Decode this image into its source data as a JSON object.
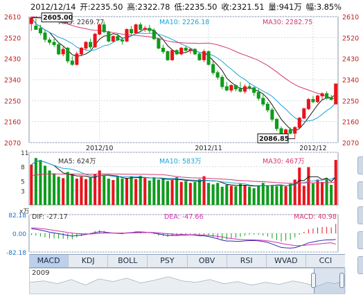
{
  "header": {
    "date": "2012/12/14",
    "open": "开:2235.50",
    "high": "高:2322.78",
    "low": "低:2235.50",
    "close": "收:2321.51",
    "volume": "量:941万",
    "change": "幅:3.85%"
  },
  "tabs": [
    "MACD",
    "KDJ",
    "BOLL",
    "PSY",
    "OBV",
    "RSI",
    "WVAD",
    "CCI"
  ],
  "active_tab": "MACD",
  "navigator_year": "2009",
  "colors": {
    "up": "#e8141c",
    "down": "#0f9c1c",
    "ma5": "#111111",
    "ma10": "#1aa3d8",
    "ma30": "#d6366e",
    "dif": "#2a2aaa",
    "dea": "#d42ab0",
    "text_blue": "#1b6fc2"
  },
  "chart_data": [
    {
      "type": "candlestick",
      "ylim": [
        2070,
        2610
      ],
      "yticks": [
        2610,
        2520,
        2430,
        2340,
        2250,
        2160,
        2070
      ],
      "xticks": [
        {
          "label": "2012/10",
          "index": 15
        },
        {
          "label": "2012/11",
          "index": 39
        },
        {
          "label": "2012/12",
          "index": 62
        }
      ],
      "annotations": {
        "high": "2605.00",
        "low": "2086.85"
      },
      "legend": {
        "ma5": "MA5: 2269.77",
        "ma10": "MA10: 2226.18",
        "ma30": "MA30: 2282.75"
      },
      "candles": [
        [
          2580,
          2605,
          2550,
          2605
        ],
        [
          2570,
          2600,
          2560,
          2555
        ],
        [
          2560,
          2575,
          2530,
          2540
        ],
        [
          2540,
          2555,
          2500,
          2512
        ],
        [
          2510,
          2520,
          2490,
          2500
        ],
        [
          2500,
          2515,
          2480,
          2490
        ],
        [
          2490,
          2500,
          2445,
          2450
        ],
        [
          2450,
          2480,
          2440,
          2470
        ],
        [
          2475,
          2480,
          2410,
          2420
        ],
        [
          2420,
          2440,
          2400,
          2405
        ],
        [
          2405,
          2460,
          2400,
          2450
        ],
        [
          2450,
          2480,
          2440,
          2475
        ],
        [
          2475,
          2505,
          2465,
          2500
        ],
        [
          2500,
          2515,
          2470,
          2480
        ],
        [
          2480,
          2540,
          2475,
          2535
        ],
        [
          2535,
          2580,
          2530,
          2575
        ],
        [
          2575,
          2590,
          2540,
          2545
        ],
        [
          2545,
          2550,
          2500,
          2505
        ],
        [
          2505,
          2530,
          2500,
          2525
        ],
        [
          2525,
          2540,
          2505,
          2510
        ],
        [
          2510,
          2520,
          2490,
          2505
        ],
        [
          2505,
          2560,
          2500,
          2555
        ],
        [
          2555,
          2570,
          2530,
          2540
        ],
        [
          2540,
          2580,
          2535,
          2575
        ],
        [
          2575,
          2585,
          2550,
          2555
        ],
        [
          2555,
          2570,
          2545,
          2560
        ],
        [
          2560,
          2575,
          2540,
          2550
        ],
        [
          2550,
          2560,
          2510,
          2515
        ],
        [
          2515,
          2520,
          2470,
          2475
        ],
        [
          2475,
          2490,
          2450,
          2460
        ],
        [
          2460,
          2465,
          2420,
          2425
        ],
        [
          2425,
          2470,
          2420,
          2465
        ],
        [
          2465,
          2470,
          2445,
          2450
        ],
        [
          2450,
          2480,
          2445,
          2475
        ],
        [
          2475,
          2485,
          2460,
          2465
        ],
        [
          2465,
          2475,
          2450,
          2470
        ],
        [
          2470,
          2475,
          2445,
          2450
        ],
        [
          2450,
          2455,
          2420,
          2425
        ],
        [
          2425,
          2470,
          2415,
          2460
        ],
        [
          2460,
          2465,
          2400,
          2405
        ],
        [
          2405,
          2420,
          2360,
          2370
        ],
        [
          2370,
          2380,
          2340,
          2350
        ],
        [
          2350,
          2360,
          2300,
          2310
        ],
        [
          2310,
          2330,
          2290,
          2295
        ],
        [
          2295,
          2320,
          2285,
          2315
        ],
        [
          2315,
          2320,
          2290,
          2300
        ],
        [
          2300,
          2330,
          2285,
          2290
        ],
        [
          2290,
          2320,
          2280,
          2310
        ],
        [
          2310,
          2325,
          2295,
          2305
        ],
        [
          2305,
          2310,
          2270,
          2285
        ],
        [
          2285,
          2300,
          2250,
          2260
        ],
        [
          2260,
          2280,
          2225,
          2235
        ],
        [
          2235,
          2245,
          2200,
          2210
        ],
        [
          2210,
          2220,
          2160,
          2170
        ],
        [
          2170,
          2175,
          2120,
          2130
        ],
        [
          2130,
          2140,
          2100,
          2105
        ],
        [
          2105,
          2130,
          2095,
          2125
        ],
        [
          2125,
          2135,
          2105,
          2110
        ],
        [
          2110,
          2140,
          2086.85,
          2135
        ],
        [
          2135,
          2180,
          2130,
          2175
        ],
        [
          2175,
          2220,
          2170,
          2215
        ],
        [
          2215,
          2260,
          2210,
          2255
        ],
        [
          2255,
          2270,
          2240,
          2245
        ],
        [
          2245,
          2275,
          2240,
          2270
        ],
        [
          2270,
          2285,
          2255,
          2280
        ],
        [
          2280,
          2290,
          2255,
          2260
        ],
        [
          2260,
          2275,
          2250,
          2255
        ],
        [
          2235.5,
          2322.78,
          2235.5,
          2321.51
        ]
      ]
    },
    {
      "type": "bar",
      "ylim": [
        0,
        11
      ],
      "yticks": [
        11,
        8,
        5,
        3
      ],
      "legend": {
        "ma5": "MA5: 624万",
        "ma10": "MA10: 583万",
        "ma30": "MA30: 467万"
      },
      "unit": "万",
      "volumes": [
        8.4,
        9.8,
        9.4,
        8.2,
        7.2,
        6.6,
        5.9,
        5.6,
        6.9,
        6.4,
        5.5,
        5.9,
        5.4,
        5.7,
        6.5,
        7.2,
        6.3,
        5.5,
        5.2,
        6.0,
        5.5,
        5.6,
        6.0,
        5.4,
        6.1,
        5.7,
        5.1,
        5.8,
        5.3,
        5.5,
        5.0,
        5.2,
        5.8,
        4.8,
        5.0,
        4.6,
        4.8,
        5.4,
        6.0,
        4.6,
        4.3,
        4.6,
        3.8,
        4.2,
        4.0,
        3.9,
        4.4,
        4.1,
        3.8,
        3.5,
        4.1,
        4.6,
        4.0,
        4.2,
        3.9,
        4.2,
        3.9,
        4.4,
        5.3,
        7.8,
        4.0,
        7.9,
        4.5,
        5.3,
        4.8,
        5.6,
        4.2,
        9.4
      ]
    },
    {
      "type": "line",
      "ylim": [
        -82.18,
        82.18
      ],
      "yticks": [
        "82.18",
        "0.00",
        "-82.18"
      ],
      "legend": {
        "dif": "DIF: -27.17",
        "dea": "DEA: -47.66",
        "macd": "MACD: 40.98"
      },
      "dif": [
        20,
        18,
        14,
        10,
        5,
        2,
        -2,
        -5,
        -9,
        -12,
        -10,
        -8,
        -5,
        -2,
        3,
        7,
        6,
        3,
        1,
        0,
        -1,
        2,
        3,
        6,
        6,
        5,
        4,
        1,
        -3,
        -6,
        -10,
        -9,
        -10,
        -8,
        -8,
        -7,
        -8,
        -11,
        -11,
        -14,
        -19,
        -24,
        -30,
        -34,
        -34,
        -35,
        -35,
        -33,
        -32,
        -32,
        -33,
        -36,
        -40,
        -47,
        -55,
        -62,
        -64,
        -65,
        -63,
        -57,
        -50,
        -42,
        -38,
        -34,
        -31,
        -29,
        -29,
        -27.17
      ],
      "dea": [
        24,
        23,
        21,
        19,
        16,
        13,
        10,
        7,
        4,
        1,
        -1,
        -2,
        -3,
        -3,
        -2,
        0,
        1,
        1,
        1,
        1,
        1,
        1,
        2,
        3,
        3,
        4,
        4,
        3,
        2,
        0,
        -2,
        -3,
        -5,
        -5,
        -6,
        -6,
        -6,
        -7,
        -8,
        -9,
        -11,
        -13,
        -16,
        -20,
        -23,
        -25,
        -27,
        -28,
        -29,
        -29,
        -30,
        -31,
        -33,
        -36,
        -40,
        -44,
        -48,
        -51,
        -54,
        -54,
        -53,
        -51,
        -49,
        -47,
        -45,
        -43,
        -42,
        -47.66
      ]
    }
  ]
}
